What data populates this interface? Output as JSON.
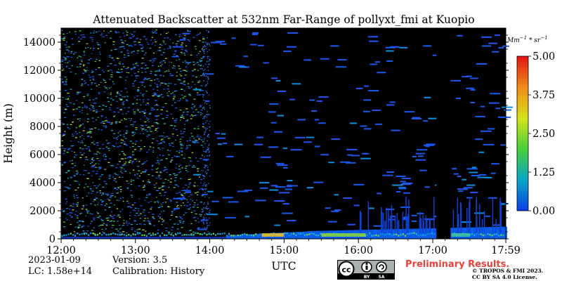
{
  "chart_data": {
    "type": "heatmap",
    "title": "Attenuated Backscatter at 532nm Far-Range of pollyxt_fmi at Kuopio",
    "xlabel": "UTC",
    "ylabel": "Height (m)",
    "x_ticks": [
      "12:00",
      "13:00",
      "14:00",
      "15:00",
      "16:00",
      "17:00",
      "17:59"
    ],
    "x_range_hours": [
      12.0,
      17.983
    ],
    "y_ticks": [
      0,
      2000,
      4000,
      6000,
      8000,
      10000,
      12000,
      14000
    ],
    "y_range": [
      0,
      15000
    ],
    "colorbar": {
      "unit": "Mm$^{-1}*sr^{-1}$",
      "ticks": [
        "0.00",
        "1.25",
        "2.50",
        "3.75",
        "5.00"
      ],
      "range": [
        0,
        5
      ],
      "colors": [
        "#0b3ee0",
        "#08a7c8",
        "#47d03a",
        "#d8e11c",
        "#f08a1a",
        "#e11414"
      ]
    },
    "features": [
      {
        "name": "boundary layer",
        "x_start_hours": 12.0,
        "x_end_hours": 17.983,
        "height_max_m": 1000
      },
      {
        "name": "data gap",
        "x_start_hours": 17.05,
        "x_end_hours": 17.23
      }
    ]
  },
  "info": {
    "date": "2023-01-09",
    "version": "Version: 3.5",
    "lc": "LC: 1.58e+14",
    "calibration": "Calibration: History"
  },
  "footer": {
    "preliminary": "Preliminary Results.",
    "copyright_line1": "© TROPOS & FMI 2023.",
    "copyright_line2": "CC BY SA 4.0 License.",
    "license_badge": {
      "cc": "cc",
      "by": "BY",
      "sa": "SA"
    }
  }
}
